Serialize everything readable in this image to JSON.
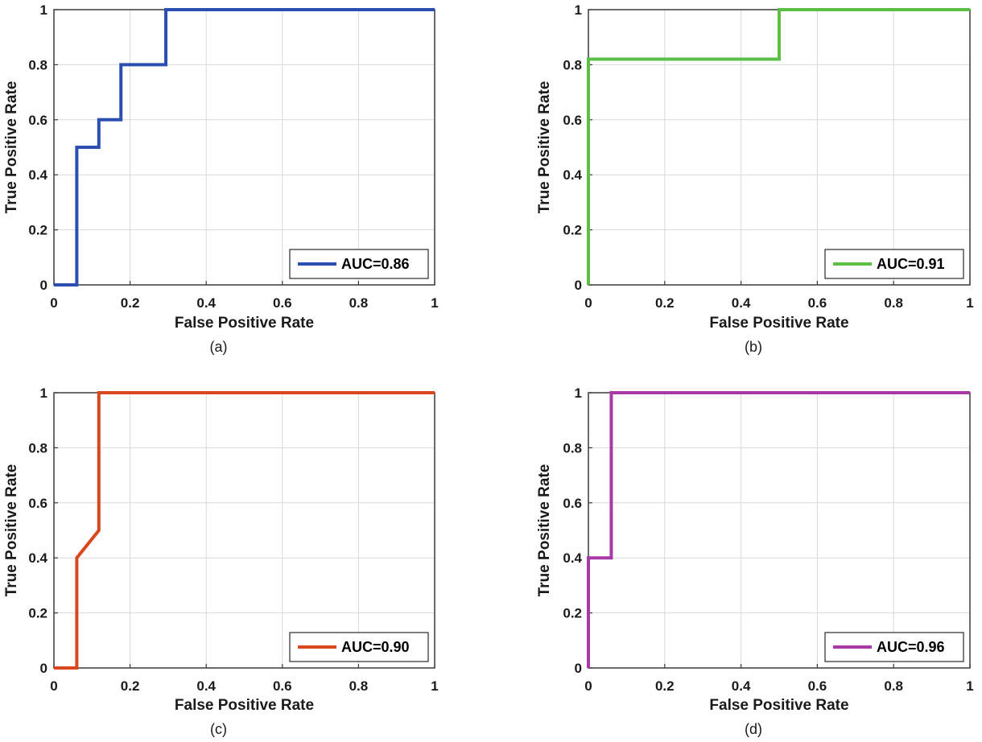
{
  "chart_data": [
    {
      "type": "line",
      "panel": "(a)",
      "xlabel": "False Positive Rate",
      "ylabel": "True Positive Rate",
      "xlim": [
        0,
        1
      ],
      "ylim": [
        0,
        1
      ],
      "xticks": [
        "0",
        "0.2",
        "0.4",
        "0.6",
        "0.8",
        "1"
      ],
      "yticks": [
        "0",
        "0.2",
        "0.4",
        "0.6",
        "0.8",
        "1"
      ],
      "grid": true,
      "legend_position": "bottom-right",
      "series": [
        {
          "name": "AUC=0.86",
          "color": "#2b4fb0",
          "x": [
            0,
            0.06,
            0.06,
            0.118,
            0.118,
            0.176,
            0.176,
            0.294,
            0.294,
            1
          ],
          "y": [
            0,
            0,
            0.5,
            0.5,
            0.6,
            0.6,
            0.8,
            0.8,
            1,
            1
          ]
        }
      ]
    },
    {
      "type": "line",
      "panel": "(b)",
      "xlabel": "False Positive Rate",
      "ylabel": "True Positive Rate",
      "xlim": [
        0,
        1
      ],
      "ylim": [
        0,
        1
      ],
      "xticks": [
        "0",
        "0.2",
        "0.4",
        "0.6",
        "0.8",
        "1"
      ],
      "yticks": [
        "0",
        "0.2",
        "0.4",
        "0.6",
        "0.8",
        "1"
      ],
      "grid": true,
      "legend_position": "bottom-right",
      "series": [
        {
          "name": "AUC=0.91",
          "color": "#5cbf45",
          "x": [
            0,
            0,
            0.5,
            0.5,
            1
          ],
          "y": [
            0,
            0.82,
            0.82,
            1,
            1
          ]
        }
      ]
    },
    {
      "type": "line",
      "panel": "(c)",
      "xlabel": "False Positive Rate",
      "ylabel": "True Positive Rate",
      "xlim": [
        0,
        1
      ],
      "ylim": [
        0,
        1
      ],
      "xticks": [
        "0",
        "0.2",
        "0.4",
        "0.6",
        "0.8",
        "1"
      ],
      "yticks": [
        "0",
        "0.2",
        "0.4",
        "0.6",
        "0.8",
        "1"
      ],
      "grid": true,
      "legend_position": "bottom-right",
      "series": [
        {
          "name": "AUC=0.90",
          "color": "#d9471f",
          "x": [
            0,
            0.06,
            0.06,
            0.118,
            0.118,
            1
          ],
          "y": [
            0,
            0,
            0.4,
            0.5,
            1,
            1
          ]
        }
      ]
    },
    {
      "type": "line",
      "panel": "(d)",
      "xlabel": "False Positive Rate",
      "ylabel": "True Positive Rate",
      "xlim": [
        0,
        1
      ],
      "ylim": [
        0,
        1
      ],
      "xticks": [
        "0",
        "0.2",
        "0.4",
        "0.6",
        "0.8",
        "1"
      ],
      "yticks": [
        "0",
        "0.2",
        "0.4",
        "0.6",
        "0.8",
        "1"
      ],
      "grid": true,
      "legend_position": "bottom-right",
      "series": [
        {
          "name": "AUC=0.96",
          "color": "#a83aa8",
          "x": [
            0,
            0,
            0.06,
            0.06,
            1
          ],
          "y": [
            0,
            0.4,
            0.4,
            1,
            1
          ]
        }
      ]
    }
  ]
}
